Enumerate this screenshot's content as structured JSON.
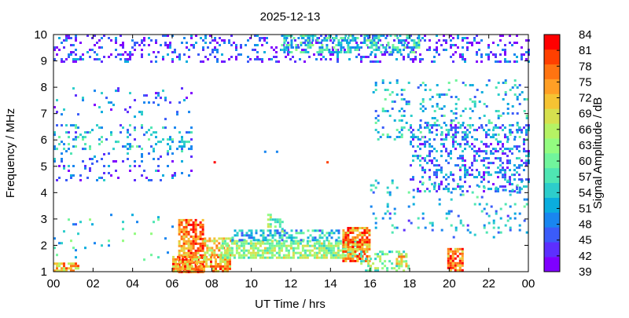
{
  "chart_data": {
    "type": "heatmap",
    "title": "2025-12-13",
    "xlabel": "UT Time / hrs",
    "ylabel": "Frequency / MHz",
    "colorbar_label": "Signal Amplitude / dB",
    "xlim": [
      0,
      24
    ],
    "ylim": [
      1,
      10
    ],
    "x_ticks": [
      "00",
      "02",
      "04",
      "06",
      "08",
      "10",
      "12",
      "14",
      "16",
      "18",
      "20",
      "22",
      "00"
    ],
    "x_tick_values": [
      0,
      2,
      4,
      6,
      8,
      10,
      12,
      14,
      16,
      18,
      20,
      22,
      24
    ],
    "y_ticks": [
      "1",
      "2",
      "3",
      "4",
      "5",
      "6",
      "7",
      "8",
      "9",
      "10"
    ],
    "y_tick_values": [
      1,
      2,
      3,
      4,
      5,
      6,
      7,
      8,
      9,
      10
    ],
    "colorbar_range": [
      39,
      84
    ],
    "colorbar_ticks": [
      "39",
      "42",
      "45",
      "48",
      "51",
      "54",
      "57",
      "60",
      "63",
      "66",
      "69",
      "72",
      "75",
      "78",
      "81",
      "84"
    ],
    "colorbar_tick_values": [
      39,
      42,
      45,
      48,
      51,
      54,
      57,
      60,
      63,
      66,
      69,
      72,
      75,
      78,
      81,
      84
    ],
    "colorbar_colors": [
      "#7f00ff",
      "#5d2ffe",
      "#3b5cf9",
      "#1986f0",
      "#0aadde",
      "#2dcdcb",
      "#4fe6b3",
      "#71f59c",
      "#93fc80",
      "#b5f264",
      "#d6e04e",
      "#f5c333",
      "#ff9f25",
      "#ff7411",
      "#ff4000",
      "#ff0000"
    ],
    "grid": false,
    "regions": [
      {
        "t": [
          0.0,
          1.3
        ],
        "f": [
          1.0,
          1.35
        ],
        "dB": 72,
        "density": 0.7
      },
      {
        "t": [
          6.3,
          7.6
        ],
        "f": [
          1.0,
          3.0
        ],
        "dB": 76,
        "density": 0.75
      },
      {
        "t": [
          6.0,
          9.0
        ],
        "f": [
          1.0,
          1.6
        ],
        "dB": 74,
        "density": 0.7
      },
      {
        "t": [
          7.6,
          9.0
        ],
        "f": [
          1.5,
          2.3
        ],
        "dB": 70,
        "density": 0.6
      },
      {
        "t": [
          8.5,
          15.5
        ],
        "f": [
          1.5,
          2.2
        ],
        "dB": 63,
        "density": 0.75
      },
      {
        "t": [
          9.0,
          14.5
        ],
        "f": [
          2.2,
          2.6
        ],
        "dB": 52,
        "density": 0.55
      },
      {
        "t": [
          10.8,
          11.6
        ],
        "f": [
          2.5,
          3.2
        ],
        "dB": 60,
        "density": 0.45
      },
      {
        "t": [
          14.6,
          16.0
        ],
        "f": [
          1.4,
          2.7
        ],
        "dB": 76,
        "density": 0.75
      },
      {
        "t": [
          15.5,
          18.0
        ],
        "f": [
          1.0,
          1.8
        ],
        "dB": 60,
        "density": 0.35
      },
      {
        "t": [
          17.3,
          17.8
        ],
        "f": [
          1.2,
          1.7
        ],
        "dB": 70,
        "density": 0.55
      },
      {
        "t": [
          19.9,
          20.7
        ],
        "f": [
          1.0,
          1.9
        ],
        "dB": 77,
        "density": 0.7
      },
      {
        "t": [
          0.0,
          24.0
        ],
        "f": [
          9.0,
          10.0
        ],
        "dB": 44,
        "density": 0.22
      },
      {
        "t": [
          11.5,
          18.5
        ],
        "f": [
          9.3,
          10.0
        ],
        "dB": 55,
        "density": 0.5
      },
      {
        "t": [
          0.0,
          7.0
        ],
        "f": [
          5.5,
          6.6
        ],
        "dB": 52,
        "density": 0.2
      },
      {
        "t": [
          0.0,
          7.0
        ],
        "f": [
          4.5,
          5.5
        ],
        "dB": 47,
        "density": 0.14
      },
      {
        "t": [
          0.0,
          7.0
        ],
        "f": [
          6.8,
          8.0
        ],
        "dB": 48,
        "density": 0.07
      },
      {
        "t": [
          18.0,
          24.0
        ],
        "f": [
          4.0,
          6.6
        ],
        "dB": 48,
        "density": 0.3
      },
      {
        "t": [
          16.0,
          24.0
        ],
        "f": [
          6.0,
          8.3
        ],
        "dB": 53,
        "density": 0.14
      },
      {
        "t": [
          16.0,
          24.0
        ],
        "f": [
          2.3,
          4.5
        ],
        "dB": 52,
        "density": 0.08
      },
      {
        "t": [
          0.0,
          6.0
        ],
        "f": [
          1.4,
          3.2
        ],
        "dB": 55,
        "density": 0.05
      }
    ],
    "isolated_points": [
      {
        "t": 8.15,
        "f": 5.15,
        "dB": 83
      },
      {
        "t": 13.85,
        "f": 5.15,
        "dB": 79
      },
      {
        "t": 10.7,
        "f": 5.55,
        "dB": 50
      },
      {
        "t": 11.3,
        "f": 5.55,
        "dB": 50
      }
    ]
  }
}
